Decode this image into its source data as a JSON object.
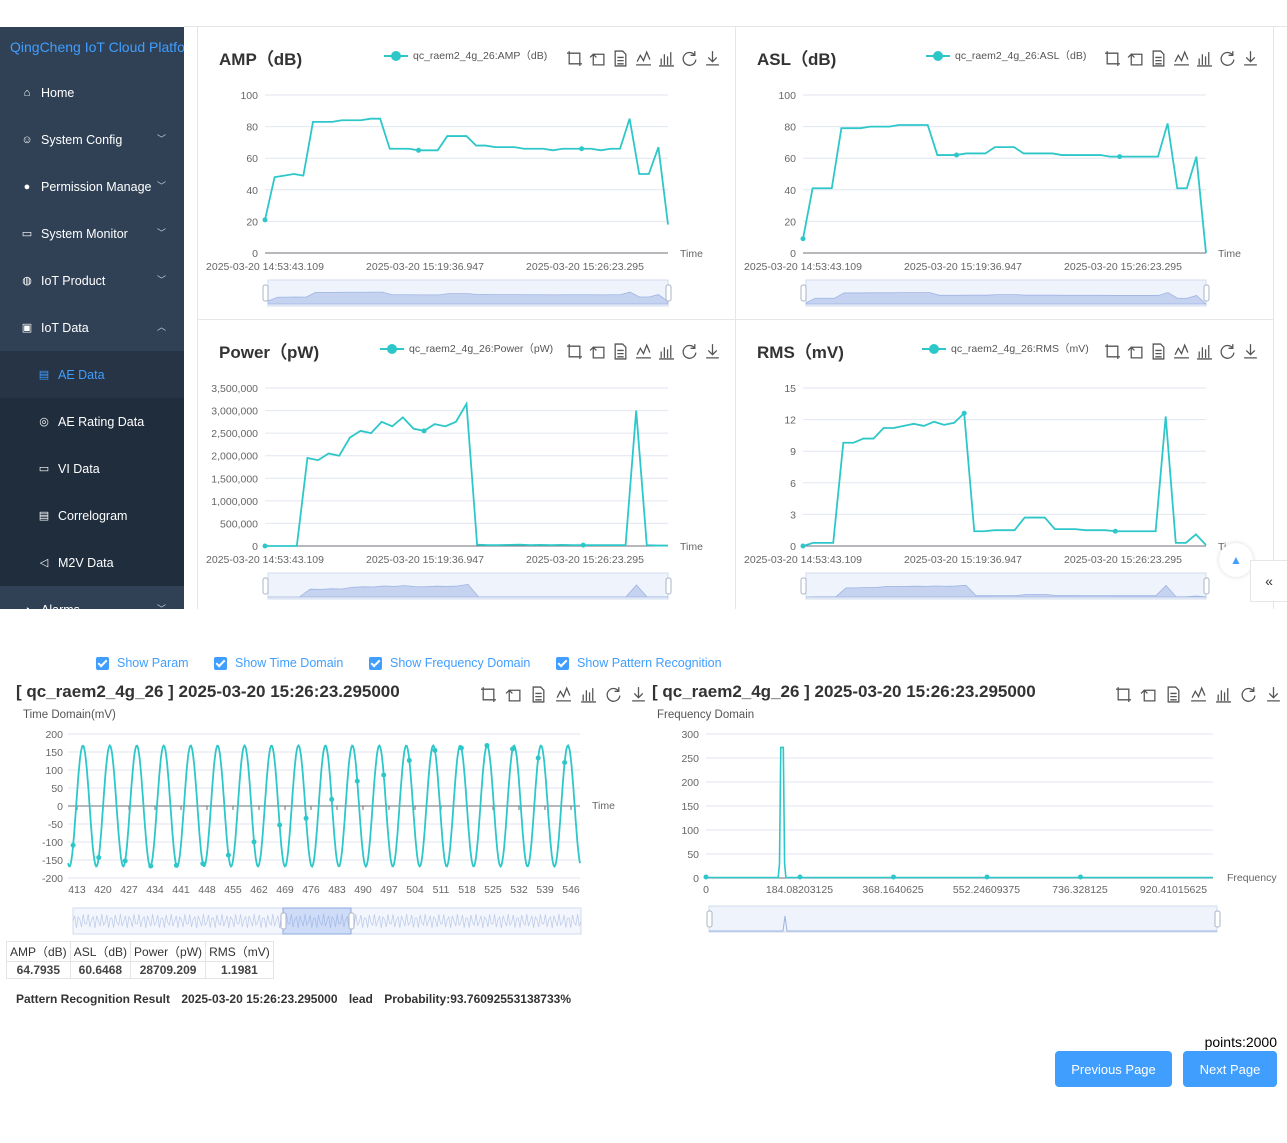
{
  "sidebar": {
    "brand": "QingCheng IoT Cloud Platform",
    "items": [
      {
        "label": "Home",
        "icon": "home-icon",
        "arrow": ""
      },
      {
        "label": "System Config",
        "icon": "users-icon",
        "arrow": "down"
      },
      {
        "label": "Permission Manage",
        "icon": "user-icon",
        "arrow": "down"
      },
      {
        "label": "System Monitor",
        "icon": "monitor-icon",
        "arrow": "down"
      },
      {
        "label": "IoT Product",
        "icon": "globe-icon",
        "arrow": "down"
      },
      {
        "label": "IoT Data",
        "icon": "data-icon",
        "arrow": "up"
      },
      {
        "label": "AE Data",
        "icon": "ae-data-icon",
        "sub": true,
        "active": true
      },
      {
        "label": "AE Rating Data",
        "icon": "rating-icon",
        "sub": true
      },
      {
        "label": "VI Data",
        "icon": "folder-icon",
        "sub": true
      },
      {
        "label": "Correlogram",
        "icon": "document-search-icon",
        "sub": true
      },
      {
        "label": "M2V Data",
        "icon": "speaker-icon",
        "sub": true
      },
      {
        "label": "Alarms",
        "icon": "alarm-icon",
        "arrow": "down"
      }
    ]
  },
  "colors": {
    "series": "#2ec7c9",
    "accent": "#409eff",
    "sidebar_bg": "#304156"
  },
  "top_charts": [
    {
      "title": "AMP（dB)",
      "legend": "qc_raem2_4g_26:AMP（dB)",
      "xlabel": "Time",
      "yticks": [
        "0",
        "20",
        "40",
        "60",
        "80",
        "100"
      ],
      "xticks": [
        "2025-03-20 14:53:43.109",
        "2025-03-20 15:19:36.947",
        "2025-03-20 15:26:23.295"
      ]
    },
    {
      "title": "ASL（dB)",
      "legend": "qc_raem2_4g_26:ASL（dB)",
      "xlabel": "Time",
      "yticks": [
        "0",
        "20",
        "40",
        "60",
        "80",
        "100"
      ],
      "xticks": [
        "2025-03-20 14:53:43.109",
        "2025-03-20 15:19:36.947",
        "2025-03-20 15:26:23.295"
      ]
    },
    {
      "title": "Power（pW)",
      "legend": "qc_raem2_4g_26:Power（pW)",
      "xlabel": "Time",
      "yticks": [
        "0",
        "500,000",
        "1,000,000",
        "1,500,000",
        "2,000,000",
        "2,500,000",
        "3,000,000",
        "3,500,000"
      ],
      "xticks": [
        "2025-03-20 14:53:43.109",
        "2025-03-20 15:19:36.947",
        "2025-03-20 15:26:23.295"
      ]
    },
    {
      "title": "RMS（mV)",
      "legend": "qc_raem2_4g_26:RMS（mV)",
      "xlabel": "Ti",
      "yticks": [
        "0",
        "3",
        "6",
        "9",
        "12",
        "15"
      ],
      "xticks": [
        "2025-03-20 14:53:43.109",
        "2025-03-20 15:19:36.947",
        "2025-03-20 15:26:23.295"
      ]
    }
  ],
  "checkboxes": [
    "Show Param",
    "Show Time Domain",
    "Show Frequency Domain",
    "Show Pattern Recognition"
  ],
  "time_domain": {
    "title": "[ qc_raem2_4g_26 ] 2025-03-20 15:26:23.295000",
    "label": "Time Domain(mV)",
    "xlabel": "Time",
    "yticks": [
      "-200",
      "-150",
      "-100",
      "-50",
      "0",
      "50",
      "100",
      "150",
      "200"
    ],
    "xticks": [
      "413",
      "420",
      "427",
      "434",
      "441",
      "448",
      "455",
      "462",
      "469",
      "476",
      "483",
      "490",
      "497",
      "504",
      "511",
      "518",
      "525",
      "532",
      "539",
      "546"
    ]
  },
  "freq_domain": {
    "title": "[ qc_raem2_4g_26 ] 2025-03-20 15:26:23.295000",
    "label": "Frequency Domain",
    "xlabel": "Frequency",
    "yticks": [
      "0",
      "50",
      "100",
      "150",
      "200",
      "250",
      "300"
    ],
    "xticks": [
      "0",
      "184.08203125",
      "368.1640625",
      "552.24609375",
      "736.328125",
      "920.41015625"
    ]
  },
  "params": {
    "headers": [
      "AMP（dB)",
      "ASL（dB)",
      "Power（pW)",
      "RMS（mV)"
    ],
    "values": [
      "64.7935",
      "60.6468",
      "28709.209",
      "1.1981"
    ]
  },
  "pattern": {
    "label": "Pattern Recognition Result",
    "time": "2025-03-20 15:26:23.295000",
    "class": "lead",
    "probability": "Probability:93.76092553138733%"
  },
  "pagination": {
    "points": "points:2000",
    "prev": "Previous Page",
    "next": "Next Page"
  },
  "chart_data": [
    {
      "type": "line",
      "title": "AMP（dB)",
      "series": [
        {
          "name": "qc_raem2_4g_26:AMP（dB)",
          "values": [
            21,
            48,
            49,
            50,
            49,
            83,
            83,
            83,
            84,
            84,
            84,
            85,
            85,
            66,
            66,
            66,
            65,
            65,
            65,
            74,
            74,
            74,
            68,
            68,
            67,
            67,
            67,
            66,
            66,
            66,
            65,
            66,
            66,
            66,
            66,
            65,
            66,
            66,
            85,
            50,
            50,
            67,
            18
          ]
        }
      ],
      "ylim": [
        0,
        100
      ],
      "xlabel": "Time"
    },
    {
      "type": "line",
      "title": "ASL（dB)",
      "series": [
        {
          "name": "qc_raem2_4g_26:ASL（dB)",
          "values": [
            9,
            41,
            41,
            41,
            79,
            79,
            79,
            80,
            80,
            80,
            81,
            81,
            81,
            81,
            62,
            62,
            62,
            63,
            63,
            63,
            67,
            67,
            67,
            63,
            63,
            63,
            63,
            62,
            62,
            62,
            62,
            62,
            61,
            61,
            61,
            61,
            61,
            61,
            82,
            41,
            41,
            61,
            0
          ]
        }
      ],
      "ylim": [
        0,
        100
      ],
      "xlabel": "Time"
    },
    {
      "type": "line",
      "title": "Power（pW)",
      "series": [
        {
          "name": "qc_raem2_4g_26:Power（pW)",
          "values": [
            0,
            0,
            0,
            0,
            1950000,
            1900000,
            2050000,
            2000000,
            2400000,
            2550000,
            2500000,
            2750000,
            2650000,
            2850000,
            2600000,
            2550000,
            2700000,
            2650000,
            2750000,
            3150000,
            30000,
            20000,
            20000,
            25000,
            30000,
            20000,
            25000,
            20000,
            25000,
            20000,
            20000,
            20000,
            20000,
            20000,
            20000,
            3000000,
            20000,
            10000,
            10000
          ]
        }
      ],
      "ylim": [
        0,
        3500000
      ],
      "xlabel": "Time"
    },
    {
      "type": "line",
      "title": "RMS（mV)",
      "series": [
        {
          "name": "qc_raem2_4g_26:RMS（mV)",
          "values": [
            0,
            0.3,
            0.3,
            0.3,
            9.8,
            9.8,
            10.2,
            10.2,
            11.2,
            11.2,
            11.4,
            11.6,
            11.4,
            11.8,
            11.5,
            11.7,
            12.6,
            1.4,
            1.4,
            1.5,
            1.5,
            1.5,
            2.7,
            2.7,
            2.7,
            1.6,
            1.6,
            1.6,
            1.5,
            1.5,
            1.5,
            1.4,
            1.4,
            1.4,
            1.4,
            1.4,
            12.3,
            0.3,
            0.3,
            1.1,
            0.1
          ]
        }
      ],
      "ylim": [
        0,
        15
      ],
      "xlabel": "Ti"
    },
    {
      "type": "line",
      "title": "[ qc_raem2_4g_26 ] 2025-03-20 15:26:23.295000",
      "ylabel": "Time Domain(mV)",
      "xlabel": "Time",
      "x_range": [
        413,
        546
      ],
      "ylim": [
        -200,
        200
      ],
      "series": [
        {
          "name": "",
          "amplitude": 168,
          "cycles": 19
        }
      ]
    },
    {
      "type": "line",
      "title": "[ qc_raem2_4g_26 ] 2025-03-20 15:26:23.295000",
      "ylabel": "Frequency Domain",
      "xlabel": "Frequency",
      "x_range": [
        0,
        1000
      ],
      "ylim": [
        0,
        300
      ],
      "series": [
        {
          "name": "",
          "peak_x": 165,
          "peak_y": 272,
          "baseline": 1
        }
      ]
    }
  ]
}
